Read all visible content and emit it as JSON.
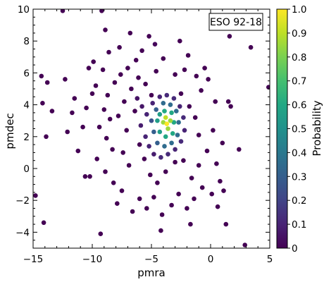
{
  "chart_data": {
    "type": "scatter",
    "annotation": "ESO 92-18",
    "xlabel": "pmra",
    "ylabel": "pmdec",
    "xlim": [
      -15,
      5
    ],
    "ylim": [
      -5,
      10
    ],
    "x_ticks": [
      -15,
      -10,
      -5,
      0,
      5
    ],
    "x_tick_labels": [
      "−15",
      "−10",
      "−5",
      "0",
      "5"
    ],
    "y_ticks": [
      -4,
      -2,
      0,
      2,
      4,
      6,
      8,
      10
    ],
    "y_tick_labels": [
      "−4",
      "−2",
      "0",
      "2",
      "4",
      "6",
      "8",
      "10"
    ],
    "grid": false,
    "colorbar": {
      "label": "Probability",
      "colormap": "viridis",
      "range": [
        0,
        1
      ],
      "ticks": [
        0,
        0.1,
        0.2,
        0.3,
        0.4,
        0.5,
        0.6,
        0.7,
        0.8,
        0.9,
        1.0
      ],
      "tick_labels": [
        "0",
        "0.1",
        "0.2",
        "0.3",
        "0.4",
        "0.5",
        "0.6",
        "0.7",
        "0.8",
        "0.9",
        "1.0"
      ]
    },
    "cluster_center": [
      -3.7,
      2.8
    ],
    "points": [
      {
        "x": -12.5,
        "y": 9.9,
        "p": 0.0
      },
      {
        "x": -9.2,
        "y": 9.9,
        "p": 0.0
      },
      {
        "x": 3.1,
        "y": 9.5,
        "p": 0.0
      },
      {
        "x": 3.4,
        "y": 7.6,
        "p": 0.0
      },
      {
        "x": 1.6,
        "y": 8.3,
        "p": 0.0
      },
      {
        "x": 4.9,
        "y": 5.1,
        "p": 0.0
      },
      {
        "x": -14.3,
        "y": 5.8,
        "p": 0.0
      },
      {
        "x": -13.8,
        "y": 5.4,
        "p": 0.0
      },
      {
        "x": -14.2,
        "y": 4.1,
        "p": 0.0
      },
      {
        "x": -13.4,
        "y": 3.6,
        "p": 0.0
      },
      {
        "x": -13.9,
        "y": 2.0,
        "p": 0.0
      },
      {
        "x": -14.8,
        "y": -1.7,
        "p": 0.0
      },
      {
        "x": -14.1,
        "y": -3.4,
        "p": 0.0
      },
      {
        "x": -9.3,
        "y": -4.1,
        "p": 0.0
      },
      {
        "x": -4.2,
        "y": -3.9,
        "p": 0.0
      },
      {
        "x": -1.7,
        "y": -3.5,
        "p": 0.0
      },
      {
        "x": 1.3,
        "y": -3.5,
        "p": 0.0
      },
      {
        "x": 2.9,
        "y": -4.8,
        "p": 0.0
      },
      {
        "x": 0.6,
        "y": -2.4,
        "p": 0.0
      },
      {
        "x": 1.7,
        "y": 3.9,
        "p": 0.0
      },
      {
        "x": 1.5,
        "y": 4.2,
        "p": 0.0
      },
      {
        "x": 2.4,
        "y": 1.2,
        "p": 0.0
      },
      {
        "x": -11.7,
        "y": 3.5,
        "p": 0.0
      },
      {
        "x": -11.2,
        "y": 1.1,
        "p": 0.0
      },
      {
        "x": -12.1,
        "y": 2.3,
        "p": 0.0
      },
      {
        "x": -10.6,
        "y": -0.5,
        "p": 0.0
      },
      {
        "x": -10.2,
        "y": -0.5,
        "p": 0.0
      },
      {
        "x": -9.9,
        "y": 6.7,
        "p": 0.0
      },
      {
        "x": -10.3,
        "y": 6.3,
        "p": 0.0
      },
      {
        "x": -10.0,
        "y": 4.7,
        "p": 0.0
      },
      {
        "x": -9.7,
        "y": 5.2,
        "p": 0.0
      },
      {
        "x": -9.1,
        "y": 6.2,
        "p": 0.0
      },
      {
        "x": -8.6,
        "y": 7.3,
        "p": 0.0
      },
      {
        "x": -8.9,
        "y": 8.7,
        "p": 0.0
      },
      {
        "x": -7.7,
        "y": 7.6,
        "p": 0.0
      },
      {
        "x": -6.8,
        "y": 8.5,
        "p": 0.0
      },
      {
        "x": -5.2,
        "y": 8.3,
        "p": 0.0
      },
      {
        "x": -2.6,
        "y": 8.0,
        "p": 0.0
      },
      {
        "x": -1.9,
        "y": 7.1,
        "p": 0.0
      },
      {
        "x": -0.5,
        "y": 6.3,
        "p": 0.0
      },
      {
        "x": -0.2,
        "y": 5.6,
        "p": 0.0
      },
      {
        "x": 0.4,
        "y": 4.2,
        "p": 0.0
      },
      {
        "x": -0.8,
        "y": 4.9,
        "p": 0.0
      },
      {
        "x": -1.2,
        "y": 5.8,
        "p": 0.0
      },
      {
        "x": -2.2,
        "y": 6.2,
        "p": 0.0
      },
      {
        "x": -3.0,
        "y": 5.9,
        "p": 0.0
      },
      {
        "x": -4.0,
        "y": 6.9,
        "p": 0.0
      },
      {
        "x": -4.6,
        "y": 6.1,
        "p": 0.0
      },
      {
        "x": -5.8,
        "y": 7.4,
        "p": 0.0
      },
      {
        "x": -6.3,
        "y": 6.8,
        "p": 0.0
      },
      {
        "x": -7.0,
        "y": 6.3,
        "p": 0.0
      },
      {
        "x": -7.6,
        "y": 5.9,
        "p": 0.0
      },
      {
        "x": -8.1,
        "y": 5.4,
        "p": 0.0
      },
      {
        "x": -8.7,
        "y": 4.6,
        "p": 0.0
      },
      {
        "x": -9.0,
        "y": 3.7,
        "p": 0.0
      },
      {
        "x": -8.5,
        "y": 3.1,
        "p": 0.0
      },
      {
        "x": -9.4,
        "y": 2.6,
        "p": 0.0
      },
      {
        "x": -8.8,
        "y": 1.9,
        "p": 0.0
      },
      {
        "x": -8.3,
        "y": 1.2,
        "p": 0.0
      },
      {
        "x": -9.6,
        "y": 0.6,
        "p": 0.0
      },
      {
        "x": -8.9,
        "y": -0.2,
        "p": 0.0
      },
      {
        "x": -8.2,
        "y": -0.9,
        "p": 0.0
      },
      {
        "x": -7.5,
        "y": -1.4,
        "p": 0.0
      },
      {
        "x": -7.9,
        "y": -2.2,
        "p": 0.0
      },
      {
        "x": -6.6,
        "y": -2.7,
        "p": 0.0
      },
      {
        "x": -6.0,
        "y": -1.9,
        "p": 0.0
      },
      {
        "x": -5.4,
        "y": -2.5,
        "p": 0.0
      },
      {
        "x": -4.8,
        "y": -1.8,
        "p": 0.0
      },
      {
        "x": -4.1,
        "y": -2.9,
        "p": 0.0
      },
      {
        "x": -3.3,
        "y": -2.3,
        "p": 0.0
      },
      {
        "x": -2.7,
        "y": -1.6,
        "p": 0.0
      },
      {
        "x": -2.0,
        "y": -2.5,
        "p": 0.0
      },
      {
        "x": -1.4,
        "y": -1.9,
        "p": 0.0
      },
      {
        "x": -0.7,
        "y": -1.2,
        "p": 0.0
      },
      {
        "x": 0.1,
        "y": -1.6,
        "p": 0.0
      },
      {
        "x": 0.8,
        "y": -0.8,
        "p": 0.0
      },
      {
        "x": 1.1,
        "y": -1.4,
        "p": 0.0
      },
      {
        "x": 0.5,
        "y": 0.3,
        "p": 0.0
      },
      {
        "x": 1.0,
        "y": 1.6,
        "p": 0.0
      },
      {
        "x": 0.2,
        "y": 2.4,
        "p": 0.0
      },
      {
        "x": -0.3,
        "y": 1.1,
        "p": 0.0
      },
      {
        "x": -1.0,
        "y": 0.2,
        "p": 0.0
      },
      {
        "x": -1.6,
        "y": -0.6,
        "p": 0.0
      },
      {
        "x": -2.3,
        "y": 0.5,
        "p": 0.0
      },
      {
        "x": -6.9,
        "y": 0.2,
        "p": 0.0
      },
      {
        "x": -7.4,
        "y": 1.0,
        "p": 0.0
      },
      {
        "x": -7.1,
        "y": 2.4,
        "p": 0.0
      },
      {
        "x": -7.8,
        "y": 3.3,
        "p": 0.0
      },
      {
        "x": -7.3,
        "y": 4.2,
        "p": 0.0
      },
      {
        "x": -6.7,
        "y": 5.0,
        "p": 0.0
      },
      {
        "x": -6.1,
        "y": 5.7,
        "p": 0.0
      },
      {
        "x": -5.5,
        "y": 5.3,
        "p": 0.0
      },
      {
        "x": -5.0,
        "y": 4.6,
        "p": 0.0
      },
      {
        "x": -6.4,
        "y": 3.6,
        "p": 0.0
      },
      {
        "x": -6.0,
        "y": 1.5,
        "p": 0.0
      },
      {
        "x": -5.6,
        "y": 0.6,
        "p": 0.0
      },
      {
        "x": -5.1,
        "y": -0.4,
        "p": 0.0
      },
      {
        "x": -4.5,
        "y": -0.9,
        "p": 0.0
      },
      {
        "x": -3.8,
        "y": -0.2,
        "p": 0.0
      },
      {
        "x": -3.0,
        "y": 0.4,
        "p": 0.0
      },
      {
        "x": -2.5,
        "y": 4.7,
        "p": 0.0
      },
      {
        "x": -1.8,
        "y": 3.9,
        "p": 0.0
      },
      {
        "x": -1.3,
        "y": 3.2,
        "p": 0.0
      },
      {
        "x": -1.0,
        "y": 2.1,
        "p": 0.0
      },
      {
        "x": -10.8,
        "y": 2.6,
        "p": 0.0
      },
      {
        "x": -11.5,
        "y": 4.4,
        "p": 0.0
      },
      {
        "x": -12.3,
        "y": 5.6,
        "p": 0.0
      },
      {
        "x": -10.5,
        "y": 3.8,
        "p": 0.0
      },
      {
        "x": -4.7,
        "y": 7.8,
        "p": 0.02
      },
      {
        "x": -6.2,
        "y": 4.4,
        "p": 0.05
      },
      {
        "x": -5.8,
        "y": 3.9,
        "p": 0.06
      },
      {
        "x": -5.4,
        "y": 3.4,
        "p": 0.1
      },
      {
        "x": -5.9,
        "y": 2.7,
        "p": 0.08
      },
      {
        "x": -5.5,
        "y": 2.0,
        "p": 0.1
      },
      {
        "x": -5.2,
        "y": 1.4,
        "p": 0.1
      },
      {
        "x": -4.8,
        "y": 0.9,
        "p": 0.08
      },
      {
        "x": -4.2,
        "y": 0.7,
        "p": 0.12
      },
      {
        "x": -3.6,
        "y": 0.9,
        "p": 0.12
      },
      {
        "x": -3.0,
        "y": 1.2,
        "p": 0.1
      },
      {
        "x": -2.5,
        "y": 1.7,
        "p": 0.12
      },
      {
        "x": -2.2,
        "y": 2.4,
        "p": 0.1
      },
      {
        "x": -2.3,
        "y": 3.2,
        "p": 0.12
      },
      {
        "x": -2.6,
        "y": 3.9,
        "p": 0.1
      },
      {
        "x": -3.1,
        "y": 4.4,
        "p": 0.12
      },
      {
        "x": -3.7,
        "y": 4.6,
        "p": 0.12
      },
      {
        "x": -4.3,
        "y": 4.5,
        "p": 0.1
      },
      {
        "x": -4.9,
        "y": 4.1,
        "p": 0.1
      },
      {
        "x": -5.0,
        "y": 3.0,
        "p": 0.25
      },
      {
        "x": -4.8,
        "y": 2.3,
        "p": 0.3
      },
      {
        "x": -4.5,
        "y": 1.6,
        "p": 0.3
      },
      {
        "x": -3.9,
        "y": 1.4,
        "p": 0.35
      },
      {
        "x": -3.3,
        "y": 1.6,
        "p": 0.35
      },
      {
        "x": -2.8,
        "y": 2.1,
        "p": 0.35
      },
      {
        "x": -2.7,
        "y": 2.9,
        "p": 0.35
      },
      {
        "x": -2.9,
        "y": 3.6,
        "p": 0.35
      },
      {
        "x": -3.4,
        "y": 4.0,
        "p": 0.35
      },
      {
        "x": -4.0,
        "y": 4.1,
        "p": 0.35
      },
      {
        "x": -4.6,
        "y": 3.7,
        "p": 0.3
      },
      {
        "x": -4.5,
        "y": 3.0,
        "p": 0.55
      },
      {
        "x": -4.3,
        "y": 2.3,
        "p": 0.55
      },
      {
        "x": -3.8,
        "y": 2.0,
        "p": 0.6
      },
      {
        "x": -3.2,
        "y": 2.2,
        "p": 0.6
      },
      {
        "x": -3.1,
        "y": 2.9,
        "p": 0.6
      },
      {
        "x": -3.3,
        "y": 3.5,
        "p": 0.6
      },
      {
        "x": -3.9,
        "y": 3.6,
        "p": 0.6
      },
      {
        "x": -4.3,
        "y": 3.4,
        "p": 0.55
      },
      {
        "x": -4.0,
        "y": 2.9,
        "p": 0.85
      },
      {
        "x": -3.6,
        "y": 2.5,
        "p": 0.85
      },
      {
        "x": -3.4,
        "y": 3.0,
        "p": 0.85
      },
      {
        "x": -3.8,
        "y": 3.2,
        "p": 0.9
      },
      {
        "x": -3.7,
        "y": 2.8,
        "p": 1.0
      }
    ]
  }
}
